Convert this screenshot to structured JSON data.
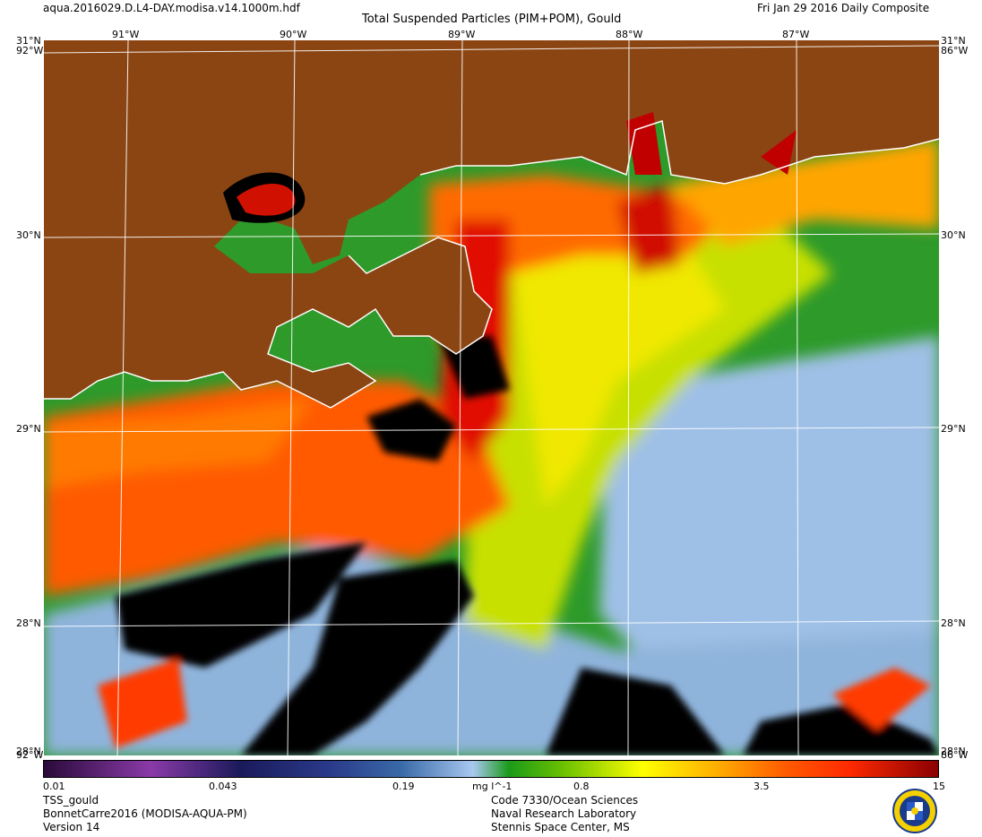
{
  "header": {
    "filename": "aqua.2016029.D.L4-DAY.modisa.v14.1000m.hdf",
    "product": "Total Suspended Particles (PIM+POM), Gould",
    "date": "Fri Jan 29 2016 Daily Composite"
  },
  "map": {
    "top_longitudes": [
      "91°W",
      "90°W",
      "89°W",
      "88°W",
      "87°W"
    ],
    "latitudes": [
      "31°N",
      "30°N",
      "29°N",
      "28°N"
    ],
    "corner_labels": {
      "top_left_lat": "31°N",
      "top_right_lat": "31°N",
      "top_left_lon": "92°W",
      "top_right_lon": "86°W",
      "bottom_left_lat": "28°N",
      "bottom_right_lat": "28°N",
      "bottom_left_lon": "92°W",
      "bottom_right_lon": "86°W"
    },
    "land_color": "#8B4513",
    "graticule_color": "#ffffff"
  },
  "colorbar": {
    "ticks": [
      "0.01",
      "0.043",
      "0.19",
      "mg l^-1",
      "0.8",
      "3.5",
      "15"
    ],
    "scale": "log",
    "range": [
      0.01,
      15
    ],
    "colors": [
      "#2a0a3a",
      "#8a3aa8",
      "#1a1a5a",
      "#3a6aa8",
      "#a8c8f0",
      "#1a9a1a",
      "#ffff00",
      "#ff8a00",
      "#ff2a00",
      "#8a0000"
    ]
  },
  "footer": {
    "left": [
      "TSS_gould",
      "BonnetCarre2016 (MODISA-AQUA-PM)",
      "Version 14"
    ],
    "center": [
      "Code 7330/Ocean Sciences",
      "Naval Research Laboratory",
      "Stennis Space Center, MS"
    ]
  }
}
